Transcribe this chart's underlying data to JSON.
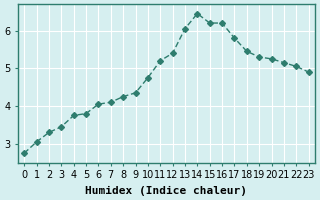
{
  "x": [
    0,
    1,
    2,
    3,
    4,
    5,
    6,
    7,
    8,
    9,
    10,
    11,
    12,
    13,
    14,
    15,
    16,
    17,
    18,
    19,
    20,
    21,
    22,
    23
  ],
  "y": [
    2.75,
    3.05,
    3.3,
    3.45,
    3.75,
    3.8,
    4.05,
    4.1,
    4.25,
    4.35,
    4.75,
    5.2,
    5.4,
    6.05,
    6.45,
    6.2,
    6.2,
    5.8,
    5.45,
    5.3,
    5.25,
    5.15,
    5.05,
    4.9
  ],
  "line_color": "#2e7d6e",
  "marker": "D",
  "marker_size": 3,
  "bg_color": "#d6eff0",
  "grid_color": "#ffffff",
  "xlabel": "Humidex (Indice chaleur)",
  "ylabel": "",
  "title": "",
  "xlim": [
    -0.5,
    23.5
  ],
  "ylim": [
    2.5,
    6.7
  ],
  "yticks": [
    3,
    4,
    5,
    6
  ],
  "xticks": [
    0,
    1,
    2,
    3,
    4,
    5,
    6,
    7,
    8,
    9,
    10,
    11,
    12,
    13,
    14,
    15,
    16,
    17,
    18,
    19,
    20,
    21,
    22,
    23
  ],
  "xlabel_fontsize": 8,
  "tick_fontsize": 7,
  "axis_color": "#2e7d6e"
}
